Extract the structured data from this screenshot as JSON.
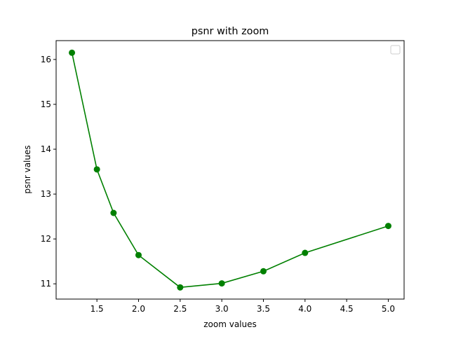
{
  "chart_data": {
    "type": "line",
    "title": "psnr with zoom",
    "xlabel": "zoom values",
    "ylabel": "psnr values",
    "x": [
      1.2,
      1.5,
      1.7,
      2.0,
      2.5,
      3.0,
      3.5,
      4.0,
      5.0
    ],
    "series": [
      {
        "values": [
          16.15,
          13.55,
          12.58,
          11.64,
          10.92,
          11.01,
          11.28,
          11.69,
          12.29
        ]
      }
    ],
    "xlim": [
      1.01,
      5.19
    ],
    "ylim": [
      10.66,
      16.42
    ],
    "xticks": [
      "1.5",
      "2.0",
      "2.5",
      "3.0",
      "3.5",
      "4.0",
      "4.5",
      "5.0"
    ],
    "yticks": [
      "11",
      "12",
      "13",
      "14",
      "15",
      "16"
    ],
    "grid": false,
    "legend": "top-right",
    "colors": {
      "line": "#008000",
      "marker": "#008000"
    }
  }
}
